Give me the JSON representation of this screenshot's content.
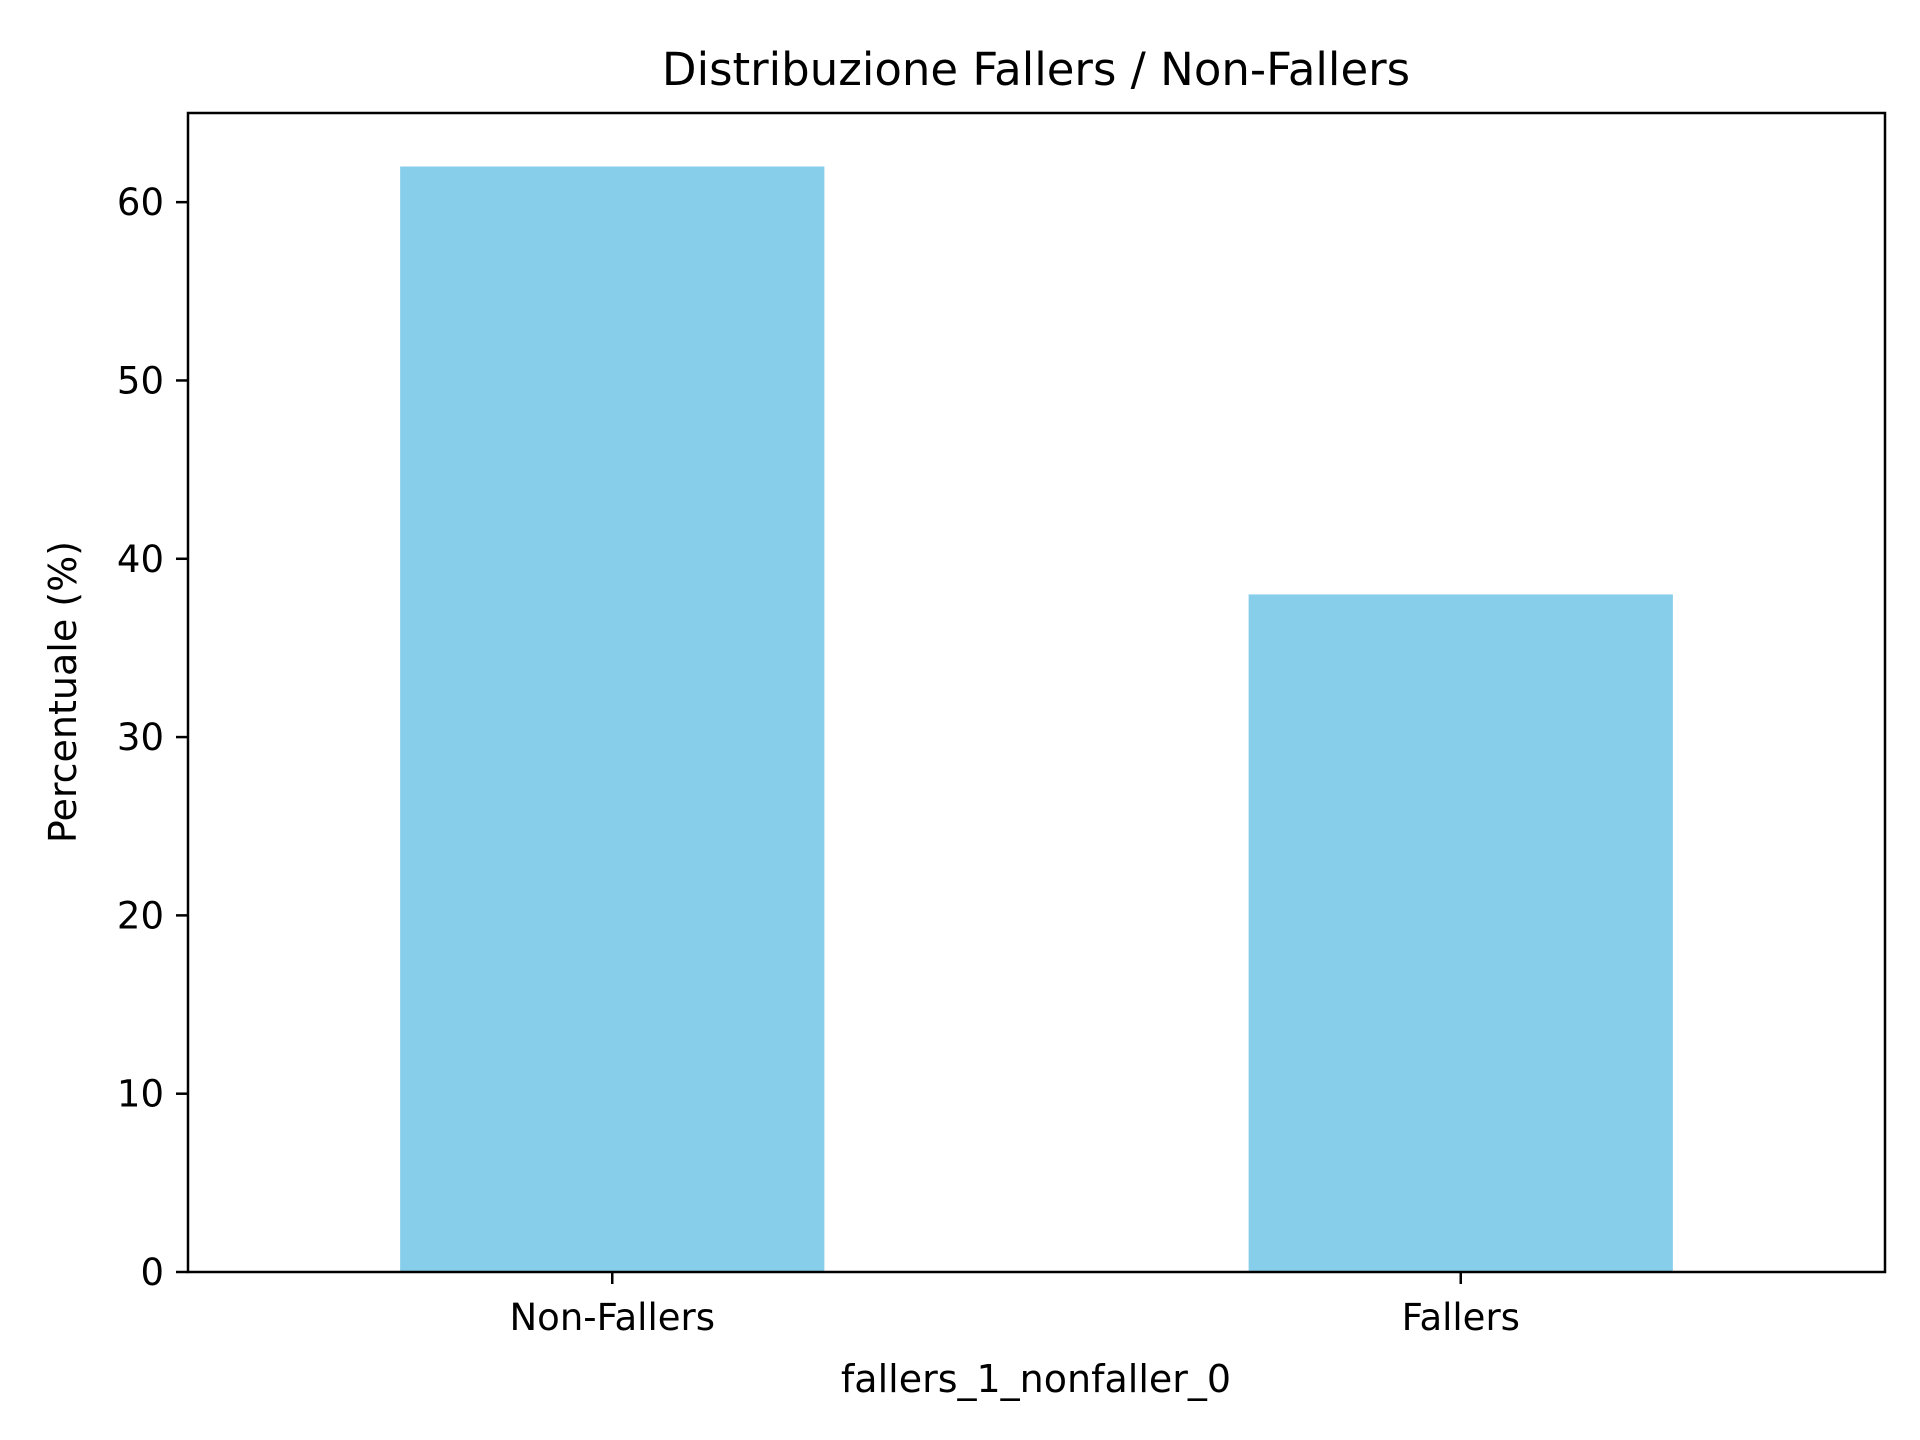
{
  "chart_data": {
    "type": "bar",
    "title": "Distribuzione Fallers / Non-Fallers",
    "xlabel": "fallers_1_nonfaller_0",
    "ylabel": "Percentuale (%)",
    "categories": [
      "Non-Fallers",
      "Fallers"
    ],
    "values": [
      62,
      38
    ],
    "ylim": [
      0,
      65
    ],
    "yticks": [
      0,
      10,
      20,
      30,
      40,
      50,
      60
    ],
    "grid": false,
    "colors": {
      "bar": "#87CEEB",
      "axis": "#000000",
      "background": "#ffffff"
    }
  }
}
